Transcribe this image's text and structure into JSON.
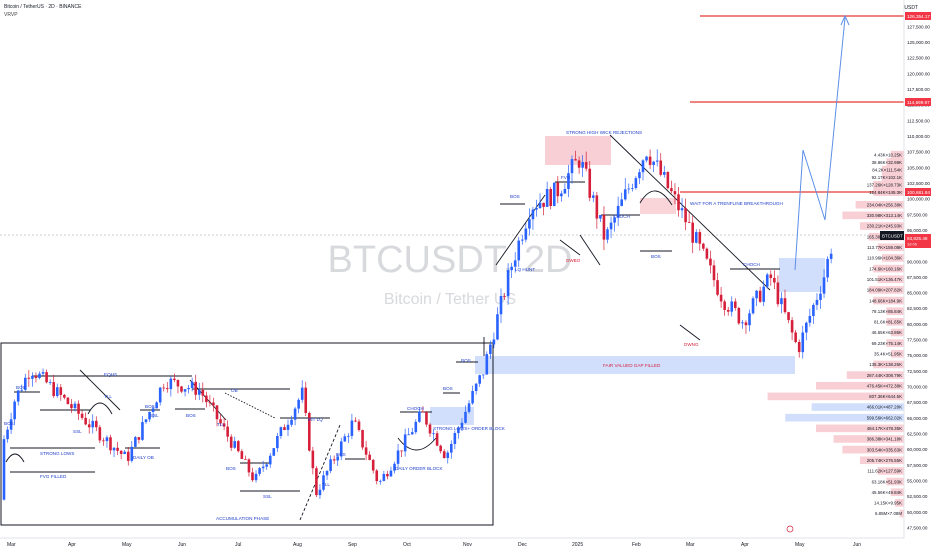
{
  "header": {
    "symbol_line": "Bitcoin / TetherUS · 2D · BINANCE",
    "indicator": "VRVP"
  },
  "watermark": {
    "ticker": "BTCUSDT, 2D",
    "name": "Bitcoin / Tether US"
  },
  "axis_unit": "USDT",
  "chart_data": {
    "type": "candlestick",
    "title": "BTCUSDT, 2D",
    "subtitle": "Bitcoin / Tether US",
    "timeframe": "2D",
    "exchange": "BINANCE",
    "x_tick_labels": [
      "Mar",
      "Apr",
      "May",
      "Jun",
      "Jul",
      "Aug",
      "Sep",
      "Oct",
      "Nov",
      "Dec",
      "2025",
      "Feb",
      "Mar",
      "Apr",
      "May",
      "Jun"
    ],
    "y_tick_labels": [
      47500,
      50000,
      52500,
      55000,
      57500,
      60000,
      62500,
      65000,
      67500,
      70000,
      72500,
      75000,
      77500,
      80000,
      82500,
      85000,
      87500,
      90000,
      92500,
      95000,
      97500,
      100000,
      102500,
      105000,
      107500,
      110000,
      112500,
      115000,
      117500,
      120000,
      122500,
      125000,
      127500
    ],
    "ylim": [
      47000,
      130500
    ],
    "series_price_path": {
      "note": "approximate 2D closes read from the chart",
      "x": [
        "2024-02-20",
        "2024-03-05",
        "2024-03-13",
        "2024-03-25",
        "2024-04-12",
        "2024-05-01",
        "2024-05-20",
        "2024-06-07",
        "2024-07-05",
        "2024-07-29",
        "2024-08-05",
        "2024-08-24",
        "2024-09-06",
        "2024-09-28",
        "2024-10-10",
        "2024-10-29",
        "2024-11-12",
        "2024-11-22",
        "2024-12-05",
        "2024-12-17",
        "2024-12-30",
        "2025-01-20",
        "2025-02-10",
        "2025-02-28",
        "2025-03-10",
        "2025-03-24",
        "2025-04-07",
        "2025-04-20",
        "2025-04-25"
      ],
      "y": [
        52000,
        68000,
        73000,
        69500,
        64000,
        58500,
        71000,
        69500,
        55000,
        69000,
        53000,
        64500,
        54500,
        65800,
        59000,
        72500,
        89000,
        99000,
        101000,
        106500,
        93500,
        108000,
        96000,
        84000,
        80500,
        87500,
        76000,
        87500,
        93800
      ]
    },
    "price_labels": [
      {
        "value": "126,354.17",
        "color": "#f23645"
      },
      {
        "value": "114,699.97",
        "color": "#f23645"
      },
      {
        "value": "100,681.84",
        "color": "#f23645"
      },
      {
        "value": "93,825.49",
        "color": "#f23645",
        "sublabel": "1d 0h"
      },
      {
        "value": "BTCUSDT",
        "color": "#131722"
      }
    ],
    "volume_profile": [
      {
        "label": "4.43K×10.25K",
        "price": 106500
      },
      {
        "label": "38.86K×32.98K",
        "price": 105300
      },
      {
        "label": "84.2K×111.54K",
        "price": 104100
      },
      {
        "label": "92.17K×102.1K",
        "price": 102900
      },
      {
        "label": "137.26K×128.73K",
        "price": 101700
      },
      {
        "label": "124.84K×145.3K",
        "price": 100500
      },
      {
        "label": "234.04K×256.38K",
        "price": 98500
      },
      {
        "label": "330.98K×313.14K",
        "price": 96800
      },
      {
        "label": "230.21K×245.93K",
        "price": 95100
      },
      {
        "label": "165.38K×190.03K",
        "price": 93400
      },
      {
        "label": "113.77K×159.08K",
        "price": 91700
      },
      {
        "label": "110.96K×104.36K",
        "price": 90000
      },
      {
        "label": "174.6K×160.16K",
        "price": 88300
      },
      {
        "label": "101.51K×136.47K",
        "price": 86600
      },
      {
        "label": "184.09K×207.82K",
        "price": 84900
      },
      {
        "label": "148.66K×184.9K",
        "price": 83200
      },
      {
        "label": "78.13K×85.84K",
        "price": 81500
      },
      {
        "label": "81.6K×81.65K",
        "price": 79800
      },
      {
        "label": "46.55K×63.86K",
        "price": 78100
      },
      {
        "label": "69.23K×75.14K",
        "price": 76400
      },
      {
        "label": "35.4K×51.95K",
        "price": 74700
      },
      {
        "label": "135.3K×138.26K",
        "price": 73000
      },
      {
        "label": "287.44K×308.79K",
        "price": 71300
      },
      {
        "label": "476.45K×472.38K",
        "price": 69600
      },
      {
        "label": "807.36K×644.5K",
        "price": 67900
      },
      {
        "label": "466.01K×487.28K",
        "price": 66200
      },
      {
        "label": "599.56K×662.02K",
        "price": 64500
      },
      {
        "label": "484.17K×478.35K",
        "price": 62800
      },
      {
        "label": "386.38K×341.18K",
        "price": 61100
      },
      {
        "label": "303.54K×335.63K",
        "price": 59400
      },
      {
        "label": "205.74K×276.55K",
        "price": 57700
      },
      {
        "label": "111.62K×127.59K",
        "price": 56000
      },
      {
        "label": "63.18K×51.93K",
        "price": 54300
      },
      {
        "label": "45.56K×49.84K",
        "price": 52600
      },
      {
        "label": "14.15K×9.95K",
        "price": 50900
      },
      {
        "label": "6.85M×7.08M",
        "price": 49200
      }
    ],
    "annotations": [
      "STRONG HIGH WICK REJECTIONS",
      "WAIT FOR A TRENFLINE BREAKTHROUGH",
      "FAIR VALUED GAP FILLED",
      "ACCUMULATION PHASE",
      "STRONG LOWS",
      "FVG FILLED",
      "DAILY OB",
      "DAILY ORDER BLOCK",
      "STRONG LOWS+ ORDER BLOCK",
      "LQ HUNT",
      "CHOCH",
      "BOS",
      "SSL",
      "TLL",
      "EQHS",
      "OB",
      "INT LQ",
      "DWBO",
      "DWNG",
      "FVG"
    ]
  },
  "labels": {
    "bos": "BOS",
    "ssl": "SSL",
    "tll": "TLL",
    "eqhs": "EQHS",
    "ob": "OB",
    "int_lq": "INT LQ",
    "choch": "CHOCH",
    "fvg": "FVG",
    "dwbo": "DWBO",
    "dwng": "DWNG",
    "strong_lows": "STRONG LOWS",
    "fvg_filled": "FVG FILLED",
    "daily_ob": "DAILY OB",
    "daily_order_block": "DAILY ORDER BLOCK",
    "strong_lows_ob": "STRONG LOWS+ ORDER BLOCK",
    "accumulation": "ACCUMULATION PHASE",
    "lq_hunt": "LQ HUNT",
    "fvg_gap_filled": "FAIR VALUED GAP FILLED",
    "high_wick": "STRONG HIGH WICK REJECTIONS",
    "trendline_wait": "WAIT FOR A TRENFLINE BREAKTHROUGH"
  },
  "colors": {
    "bull": "#2962ff",
    "bear": "#d61f3a",
    "target_line": "#e53935",
    "projection": "#5b8fe6",
    "zone_red": "#f7c7cc",
    "zone_blue": "#c9d9fb",
    "annotation_blue": "#1e3ec8",
    "annotation_red": "#d61f3a"
  }
}
